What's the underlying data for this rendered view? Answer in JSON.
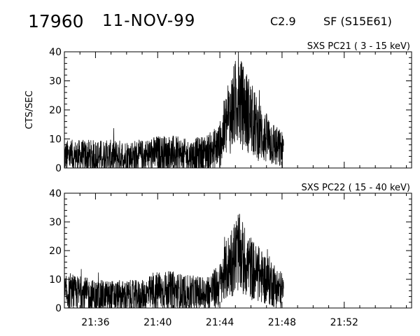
{
  "header": {
    "event_id": "17960",
    "date": "11-NOV-99",
    "goes_class": "C2.9",
    "flare": "SF (S15E61)"
  },
  "chart_data": [
    {
      "type": "line",
      "title": "SXS PC21  (  3 - 15 keV)",
      "ylabel": "CTS/SEC",
      "xlabel": "",
      "ylim": [
        0,
        40
      ],
      "yticks": [
        0,
        10,
        20,
        30,
        40
      ],
      "xlim": [
        "21:34:00",
        "21:56:20"
      ],
      "xticks": [
        "21:36",
        "21:40",
        "21:44",
        "21:48",
        "21:52"
      ],
      "grid": false,
      "series": [
        {
          "x": [
            "21:34:00",
            "21:35:00",
            "21:36:00",
            "21:37:00",
            "21:38:00",
            "21:39:00",
            "21:40:00",
            "21:41:00",
            "21:42:00",
            "21:43:00",
            "21:43:30",
            "21:44:00",
            "21:44:20",
            "21:44:40",
            "21:45:00",
            "21:45:10",
            "21:45:20",
            "21:45:40",
            "21:46:00",
            "21:46:20",
            "21:46:40",
            "21:47:00",
            "21:47:20",
            "21:47:40",
            "21:48:00",
            "21:48:06"
          ],
          "values": [
            4,
            4,
            4,
            4,
            4,
            4,
            5,
            5,
            4,
            5,
            6,
            8,
            14,
            18,
            22,
            26,
            22,
            20,
            17,
            14,
            12,
            10,
            9,
            7,
            6,
            5
          ]
        }
      ]
    },
    {
      "type": "line",
      "title": "SXS PC22  ( 15 - 40 keV)",
      "ylabel": "",
      "xlabel": "",
      "ylim": [
        0,
        40
      ],
      "yticks": [
        0,
        10,
        20,
        30,
        40
      ],
      "xlim": [
        "21:34:00",
        "21:56:20"
      ],
      "xticks": [
        "21:36",
        "21:40",
        "21:44",
        "21:48",
        "21:52"
      ],
      "grid": false,
      "series": [
        {
          "x": [
            "21:34:00",
            "21:35:00",
            "21:36:00",
            "21:37:00",
            "21:38:00",
            "21:39:00",
            "21:40:00",
            "21:41:00",
            "21:42:00",
            "21:43:00",
            "21:43:30",
            "21:44:00",
            "21:44:20",
            "21:44:40",
            "21:45:00",
            "21:45:10",
            "21:45:20",
            "21:45:40",
            "21:46:00",
            "21:46:20",
            "21:46:40",
            "21:47:00",
            "21:47:20",
            "21:47:40",
            "21:48:00",
            "21:48:06"
          ],
          "values": [
            5,
            5,
            4,
            4,
            4,
            4,
            6,
            6,
            5,
            5,
            6,
            8,
            12,
            16,
            18,
            20,
            18,
            16,
            14,
            12,
            11,
            10,
            9,
            7,
            6,
            5
          ]
        }
      ]
    }
  ]
}
